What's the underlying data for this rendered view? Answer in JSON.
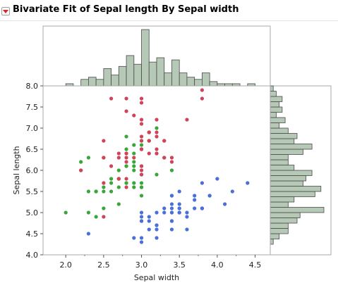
{
  "report": {
    "title": "Bivariate Fit of Sepal length By Sepal width"
  },
  "colors": {
    "setosa": "#4a6fd6",
    "versicolor": "#3aa63a",
    "virginica": "#d0435a",
    "histogram_fill": "#b6c8b6",
    "histogram_stroke": "#4a4a4a",
    "frame": "#a8a8a8"
  },
  "chart_data": {
    "type": "scatter",
    "title": "",
    "xlabel": "Sepal width",
    "ylabel": "Sepal length",
    "xlim": [
      1.7,
      4.7
    ],
    "ylim": [
      4.0,
      8.0
    ],
    "x_ticks": [
      "2.0",
      "2.5",
      "3.0",
      "3.5",
      "4.0",
      "4.5"
    ],
    "y_ticks": [
      "4.0",
      "4.5",
      "5.0",
      "5.5",
      "6.0",
      "6.5",
      "7.0",
      "7.5",
      "8.0"
    ],
    "grid": false,
    "legend": "none",
    "series": [
      {
        "color_key": "setosa",
        "points": [
          [
            3.5,
            5.1
          ],
          [
            3.0,
            4.9
          ],
          [
            3.2,
            4.7
          ],
          [
            3.1,
            4.6
          ],
          [
            3.6,
            5.0
          ],
          [
            3.9,
            5.4
          ],
          [
            3.4,
            4.6
          ],
          [
            3.4,
            5.0
          ],
          [
            2.9,
            4.4
          ],
          [
            3.1,
            4.9
          ],
          [
            3.7,
            5.4
          ],
          [
            3.4,
            4.8
          ],
          [
            3.0,
            4.8
          ],
          [
            3.0,
            4.3
          ],
          [
            4.0,
            5.8
          ],
          [
            4.4,
            5.7
          ],
          [
            3.9,
            5.4
          ],
          [
            3.5,
            5.1
          ],
          [
            3.8,
            5.7
          ],
          [
            3.8,
            5.1
          ],
          [
            3.4,
            5.4
          ],
          [
            3.7,
            5.1
          ],
          [
            3.6,
            4.6
          ],
          [
            3.3,
            5.1
          ],
          [
            3.4,
            4.8
          ],
          [
            3.0,
            5.0
          ],
          [
            3.4,
            5.0
          ],
          [
            3.5,
            5.2
          ],
          [
            3.4,
            5.2
          ],
          [
            3.2,
            4.7
          ],
          [
            3.1,
            4.8
          ],
          [
            3.4,
            5.4
          ],
          [
            4.1,
            5.2
          ],
          [
            4.2,
            5.5
          ],
          [
            3.2,
            5.0
          ],
          [
            3.5,
            5.5
          ],
          [
            3.6,
            4.9
          ],
          [
            3.0,
            4.4
          ],
          [
            3.4,
            5.1
          ],
          [
            3.5,
            5.0
          ],
          [
            2.3,
            4.5
          ],
          [
            3.2,
            4.4
          ],
          [
            3.5,
            5.0
          ],
          [
            3.8,
            5.1
          ],
          [
            3.0,
            4.8
          ],
          [
            3.8,
            5.1
          ],
          [
            3.2,
            4.6
          ],
          [
            3.7,
            5.3
          ],
          [
            3.3,
            5.0
          ]
        ]
      },
      {
        "color_key": "versicolor",
        "points": [
          [
            3.2,
            7.0
          ],
          [
            3.2,
            6.4
          ],
          [
            3.1,
            6.9
          ],
          [
            2.3,
            5.5
          ],
          [
            2.8,
            6.5
          ],
          [
            2.8,
            5.7
          ],
          [
            3.3,
            6.3
          ],
          [
            2.4,
            4.9
          ],
          [
            2.9,
            6.6
          ],
          [
            2.7,
            5.2
          ],
          [
            2.0,
            5.0
          ],
          [
            3.0,
            5.9
          ],
          [
            2.2,
            6.0
          ],
          [
            2.9,
            6.1
          ],
          [
            2.9,
            5.6
          ],
          [
            3.1,
            6.7
          ],
          [
            3.0,
            5.6
          ],
          [
            2.7,
            5.8
          ],
          [
            2.2,
            6.2
          ],
          [
            2.5,
            5.6
          ],
          [
            3.2,
            5.9
          ],
          [
            2.8,
            6.1
          ],
          [
            2.5,
            6.3
          ],
          [
            2.8,
            6.1
          ],
          [
            2.9,
            6.4
          ],
          [
            3.0,
            6.6
          ],
          [
            2.8,
            6.8
          ],
          [
            3.0,
            6.7
          ],
          [
            2.9,
            6.0
          ],
          [
            2.6,
            5.7
          ],
          [
            2.4,
            5.5
          ],
          [
            2.4,
            5.5
          ],
          [
            2.7,
            5.8
          ],
          [
            2.7,
            6.0
          ],
          [
            3.0,
            5.4
          ],
          [
            3.4,
            6.0
          ],
          [
            3.1,
            6.7
          ],
          [
            2.3,
            6.3
          ],
          [
            3.0,
            5.6
          ],
          [
            2.5,
            5.5
          ],
          [
            2.6,
            5.5
          ],
          [
            3.0,
            6.1
          ],
          [
            2.6,
            5.8
          ],
          [
            2.3,
            5.0
          ],
          [
            2.7,
            5.6
          ],
          [
            3.0,
            5.7
          ],
          [
            2.9,
            5.7
          ],
          [
            2.9,
            6.2
          ],
          [
            2.5,
            5.1
          ],
          [
            2.8,
            5.7
          ]
        ]
      },
      {
        "color_key": "virginica",
        "points": [
          [
            3.3,
            6.3
          ],
          [
            2.7,
            5.8
          ],
          [
            3.0,
            7.1
          ],
          [
            2.9,
            6.3
          ],
          [
            3.0,
            6.5
          ],
          [
            3.0,
            7.6
          ],
          [
            2.5,
            4.9
          ],
          [
            2.9,
            7.3
          ],
          [
            2.5,
            6.7
          ],
          [
            3.6,
            7.2
          ],
          [
            3.2,
            6.5
          ],
          [
            2.7,
            6.4
          ],
          [
            3.0,
            6.8
          ],
          [
            2.5,
            5.7
          ],
          [
            2.8,
            5.8
          ],
          [
            3.2,
            6.4
          ],
          [
            3.0,
            6.5
          ],
          [
            3.8,
            7.7
          ],
          [
            2.6,
            7.7
          ],
          [
            2.2,
            6.0
          ],
          [
            3.2,
            6.9
          ],
          [
            2.8,
            5.6
          ],
          [
            2.8,
            7.7
          ],
          [
            2.7,
            6.3
          ],
          [
            3.3,
            6.7
          ],
          [
            3.2,
            7.2
          ],
          [
            2.8,
            6.2
          ],
          [
            3.0,
            6.1
          ],
          [
            2.8,
            6.4
          ],
          [
            3.0,
            7.2
          ],
          [
            2.8,
            7.4
          ],
          [
            3.8,
            7.9
          ],
          [
            2.8,
            6.4
          ],
          [
            2.8,
            6.3
          ],
          [
            2.6,
            6.1
          ],
          [
            3.0,
            7.7
          ],
          [
            3.4,
            6.3
          ],
          [
            3.1,
            6.4
          ],
          [
            3.0,
            6.0
          ],
          [
            3.1,
            6.9
          ],
          [
            3.1,
            6.7
          ],
          [
            3.1,
            6.9
          ],
          [
            2.7,
            5.8
          ],
          [
            3.2,
            6.8
          ],
          [
            3.3,
            6.7
          ],
          [
            3.0,
            6.7
          ],
          [
            2.5,
            6.3
          ],
          [
            3.0,
            6.5
          ],
          [
            3.4,
            6.2
          ],
          [
            3.0,
            5.9
          ]
        ]
      }
    ],
    "histogram_x": {
      "bin_width": 0.1,
      "bins": [
        [
          2.0,
          1
        ],
        [
          2.2,
          3
        ],
        [
          2.3,
          4
        ],
        [
          2.4,
          3
        ],
        [
          2.5,
          8
        ],
        [
          2.6,
          5
        ],
        [
          2.7,
          9
        ],
        [
          2.8,
          14
        ],
        [
          2.9,
          10
        ],
        [
          3.0,
          26
        ],
        [
          3.1,
          11
        ],
        [
          3.2,
          13
        ],
        [
          3.3,
          6
        ],
        [
          3.4,
          12
        ],
        [
          3.5,
          6
        ],
        [
          3.6,
          4
        ],
        [
          3.7,
          3
        ],
        [
          3.8,
          6
        ],
        [
          3.9,
          2
        ],
        [
          4.0,
          1
        ],
        [
          4.1,
          1
        ],
        [
          4.2,
          1
        ],
        [
          4.4,
          1
        ]
      ]
    },
    "histogram_y": {
      "bin_width": 0.125,
      "bins": [
        [
          4.25,
          1
        ],
        [
          4.375,
          3
        ],
        [
          4.5,
          6
        ],
        [
          4.625,
          6
        ],
        [
          4.75,
          9
        ],
        [
          4.875,
          10
        ],
        [
          5.0,
          18
        ],
        [
          5.125,
          6
        ],
        [
          5.25,
          8
        ],
        [
          5.375,
          15
        ],
        [
          5.5,
          17
        ],
        [
          5.625,
          11
        ],
        [
          5.75,
          12
        ],
        [
          5.875,
          14
        ],
        [
          6.0,
          8
        ],
        [
          6.125,
          6
        ],
        [
          6.25,
          6
        ],
        [
          6.375,
          11
        ],
        [
          6.5,
          14
        ],
        [
          6.625,
          8
        ],
        [
          6.75,
          9
        ],
        [
          6.875,
          6
        ],
        [
          7.0,
          3
        ],
        [
          7.125,
          5
        ],
        [
          7.25,
          2
        ],
        [
          7.375,
          4
        ],
        [
          7.5,
          3
        ],
        [
          7.625,
          4
        ],
        [
          7.75,
          2
        ],
        [
          7.875,
          1
        ]
      ]
    }
  }
}
